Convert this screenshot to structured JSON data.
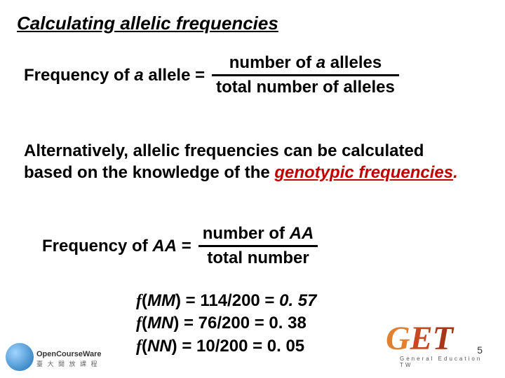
{
  "title": "Calculating allelic frequencies",
  "formula1": {
    "lhs_pre": "Frequency of ",
    "lhs_allele": "a",
    "lhs_post": " allele = ",
    "num_pre": "number of ",
    "num_allele": "a",
    "num_post": " alleles",
    "denom": "total number of alleles"
  },
  "paragraph": {
    "p1": "Alternatively, allelic frequencies can be calculated based on the knowledge of the ",
    "emph": "genotypic frequencies",
    "dot": "."
  },
  "formula2": {
    "lhs_pre": "Frequency of ",
    "lhs_geno": "AA",
    "lhs_post": " = ",
    "num_pre": "number of ",
    "num_geno": "AA",
    "denom": "total number"
  },
  "calc": {
    "rows": [
      {
        "fn": "f",
        "open": "(",
        "geno": "MM",
        "close": ") = ",
        "expr": "114/200 = ",
        "res": "0. 57"
      },
      {
        "fn": "f",
        "open": "(",
        "geno": "MN",
        "close": ") = ",
        "expr": "76/200 = 0. 38",
        "res": ""
      },
      {
        "fn": "f",
        "open": "(",
        "geno": "NN",
        "close": ") = ",
        "expr": "10/200 = 0. 05",
        "res": ""
      }
    ]
  },
  "logos": {
    "left_line1": "OpenCourseWare",
    "left_line2": "臺 大 開 放 課 程",
    "right_g": "G",
    "right_e": "E",
    "right_t": "T",
    "right_sub": "General Education TW"
  },
  "pagenum": "5",
  "colors": {
    "emph": "#c00000",
    "text": "#000000",
    "bg": "#ffffff"
  },
  "fonts": {
    "body_size_pt": 18,
    "title_size_pt": 20
  }
}
